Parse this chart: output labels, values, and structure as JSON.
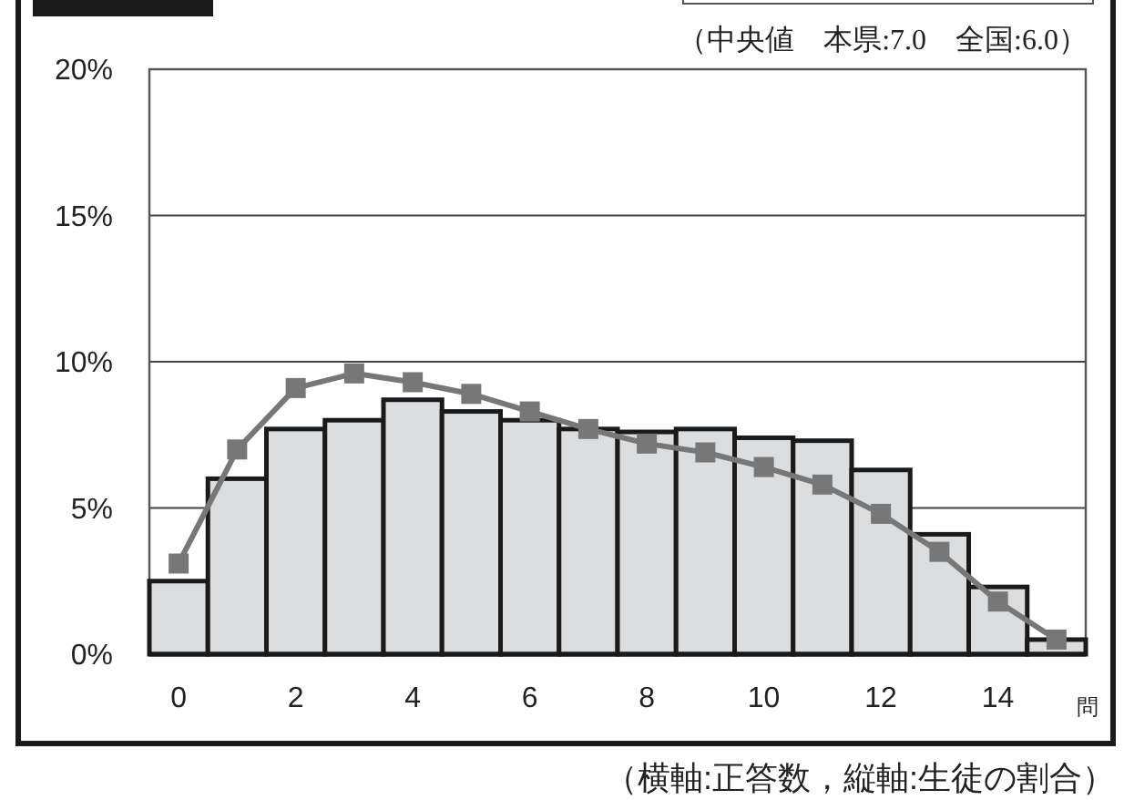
{
  "chart_data": {
    "type": "bar",
    "categories": [
      "0",
      null,
      "2",
      null,
      "4",
      null,
      "6",
      null,
      "8",
      null,
      "10",
      null,
      "12",
      null,
      "14",
      null
    ],
    "xlabel": "問",
    "series": [
      {
        "color": "#dcdddf",
        "values": [
          2.5,
          6.0,
          7.7,
          8.0,
          8.7,
          8.3,
          8.0,
          7.7,
          7.6,
          7.7,
          7.4,
          7.3,
          6.3,
          4.1,
          2.3,
          0.5
        ]
      },
      {
        "type": "line",
        "color": "#777777",
        "values": [
          3.1,
          7.0,
          9.1,
          9.6,
          9.3,
          8.9,
          8.3,
          7.7,
          7.2,
          6.9,
          6.4,
          5.8,
          4.8,
          3.5,
          1.8,
          0.5
        ],
        "marker": "square"
      }
    ],
    "ylim": [
      0,
      20
    ],
    "yticks": [
      {
        "value": 0,
        "label": "0%"
      },
      {
        "value": 5,
        "label": "5%"
      },
      {
        "value": 10,
        "label": "10%"
      },
      {
        "value": 15,
        "label": "15%"
      },
      {
        "value": 20,
        "label": "20%"
      }
    ],
    "grid": "y",
    "annotations": [
      "（中央値　本県:7.0　全国:6.0）",
      "（横軸:正答数，縦軸:生徒の割合）"
    ]
  }
}
